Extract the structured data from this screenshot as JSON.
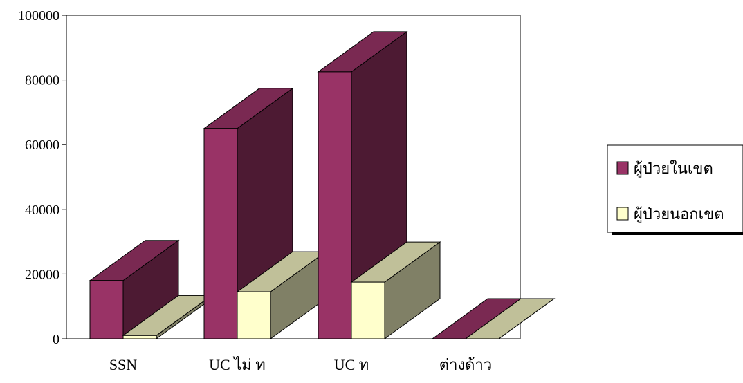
{
  "chart_data": {
    "type": "bar",
    "categories": [
      "SSN",
      "UC ไม่ ท",
      "UC ท",
      "ต่างด้าว"
    ],
    "series": [
      {
        "name": "ผู้ป่วยในเขต",
        "values": [
          18000,
          65000,
          82500,
          0
        ]
      },
      {
        "name": "ผู้ป่วยนอกเขต",
        "values": [
          1000,
          14500,
          17500,
          0
        ]
      }
    ],
    "yticks": [
      "0",
      "20000",
      "40000",
      "60000",
      "80000",
      "100000"
    ],
    "ylim": [
      0,
      100000
    ],
    "grid": false,
    "legend": "right",
    "style": "3d-clustered",
    "colors": {
      "series1_front": "#993366",
      "series1_side": "#4d1a33",
      "series1_top": "#7a2952",
      "series2_front": "#ffffcc",
      "series2_side": "#808066",
      "series2_top": "#c0c099"
    }
  }
}
